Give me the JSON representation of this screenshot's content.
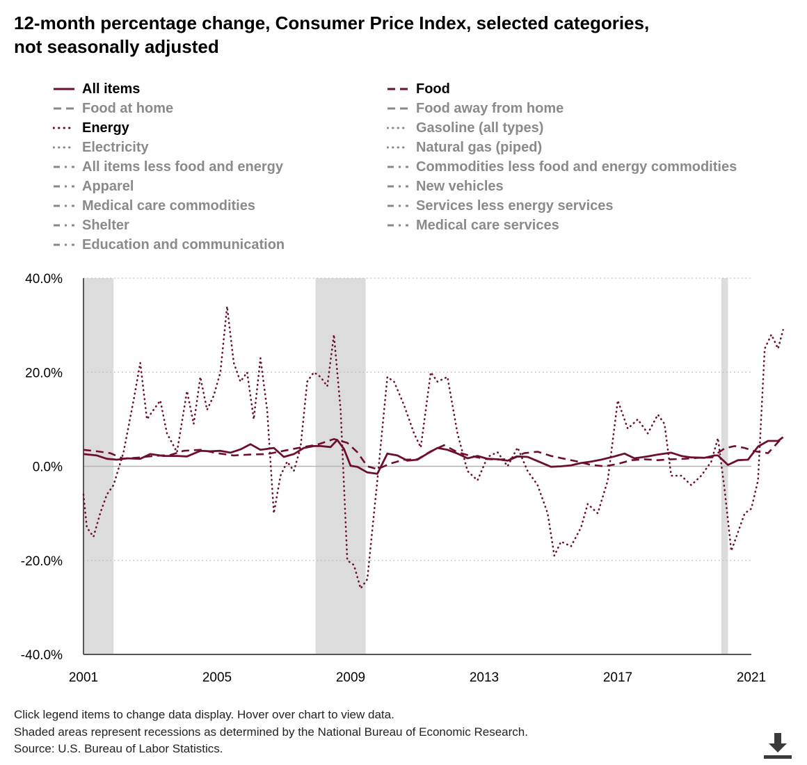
{
  "title_line1": "12-month percentage change, Consumer Price Index, selected categories,",
  "title_line2": "not seasonally adjusted",
  "legend": [
    {
      "label": "All items",
      "style": "solid",
      "active": true
    },
    {
      "label": "Food",
      "style": "dash",
      "active": true
    },
    {
      "label": "Food at home",
      "style": "dash",
      "active": false
    },
    {
      "label": "Food away from home",
      "style": "dash",
      "active": false
    },
    {
      "label": "Energy",
      "style": "dot",
      "active": true
    },
    {
      "label": "Gasoline (all types)",
      "style": "dot",
      "active": false
    },
    {
      "label": "Electricity",
      "style": "dot",
      "active": false
    },
    {
      "label": "Natural gas (piped)",
      "style": "dot",
      "active": false
    },
    {
      "label": "All items less food and energy",
      "style": "dashdot",
      "active": false
    },
    {
      "label": "Commodities less food and energy commodities",
      "style": "dashdot",
      "active": false
    },
    {
      "label": "Apparel",
      "style": "dashdot",
      "active": false
    },
    {
      "label": "New vehicles",
      "style": "dashdot",
      "active": false
    },
    {
      "label": "Medical care commodities",
      "style": "dashdot",
      "active": false
    },
    {
      "label": "Services less energy services",
      "style": "dashdot",
      "active": false
    },
    {
      "label": "Shelter",
      "style": "dashdot",
      "active": false
    },
    {
      "label": "Medical care services",
      "style": "dashdot",
      "active": false
    },
    {
      "label": "Education and communication",
      "style": "dashdot",
      "active": false
    }
  ],
  "notes": {
    "line1": "Click legend items to change data display. Hover over chart to view data.",
    "line2": "Shaded areas represent recessions as determined by the National Bureau of Economic Research.",
    "line3": "Source: U.S. Bureau of Labor Statistics."
  },
  "download_icon": "download-icon",
  "colors": {
    "series": "#6d0f2b",
    "recession": "#dcdcdc",
    "grid": "#bdbdbd",
    "zero_line": "#b4b4b4",
    "inactive_legend": "#8a8a8a"
  },
  "chart_data": {
    "type": "line",
    "title": "12-month percentage change, Consumer Price Index, selected categories, not seasonally adjusted",
    "xlabel": "",
    "ylabel": "",
    "xlim": [
      2001.0,
      2021.0
    ],
    "ylim": [
      -40,
      40
    ],
    "y_ticks": [
      "40.0%",
      "20.0%",
      "0.0%",
      "-20.0%",
      "-40.0%"
    ],
    "y_tick_values": [
      40,
      20,
      0,
      -20,
      -40
    ],
    "x_ticks": [
      "2001",
      "2005",
      "2009",
      "2013",
      "2017",
      "2021"
    ],
    "x_tick_values": [
      2001,
      2005,
      2009,
      2013,
      2017,
      2021
    ],
    "grid": "horizontal dotted",
    "recessions": [
      [
        2001.0,
        2001.9
      ],
      [
        2007.95,
        2009.45
      ],
      [
        2020.1,
        2020.3
      ]
    ],
    "series": [
      {
        "name": "All items",
        "style": "solid",
        "x": [
          2001.0,
          2001.4,
          2001.7,
          2002.0,
          2002.3,
          2002.7,
          2003.0,
          2003.4,
          2003.8,
          2004.1,
          2004.5,
          2004.8,
          2005.1,
          2005.4,
          2005.7,
          2006.0,
          2006.3,
          2006.7,
          2007.0,
          2007.3,
          2007.6,
          2007.9,
          2008.1,
          2008.4,
          2008.6,
          2008.8,
          2009.0,
          2009.2,
          2009.5,
          2009.8,
          2010.1,
          2010.4,
          2010.7,
          2011.0,
          2011.3,
          2011.6,
          2011.9,
          2012.2,
          2012.5,
          2012.8,
          2013.1,
          2013.4,
          2013.7,
          2014.0,
          2014.3,
          2014.7,
          2015.0,
          2015.3,
          2015.6,
          2015.9,
          2016.2,
          2016.5,
          2016.9,
          2017.2,
          2017.5,
          2017.9,
          2018.2,
          2018.6,
          2018.9,
          2019.2,
          2019.6,
          2019.9,
          2020.0,
          2020.3,
          2020.6,
          2020.9,
          2021.2,
          2021.5,
          2021.8,
          2021.95
        ],
        "y": [
          2.6,
          2.3,
          1.6,
          1.4,
          1.7,
          1.6,
          2.6,
          2.2,
          2.2,
          2.1,
          3.3,
          3.2,
          3.3,
          2.9,
          3.6,
          4.7,
          3.5,
          3.9,
          2.0,
          2.6,
          3.9,
          4.3,
          4.3,
          4.1,
          5.6,
          3.7,
          0.1,
          -0.1,
          -1.3,
          -1.6,
          2.7,
          2.3,
          1.2,
          1.4,
          2.7,
          3.9,
          3.5,
          2.7,
          1.7,
          2.2,
          1.6,
          1.5,
          1.2,
          2.1,
          2.0,
          0.8,
          -0.1,
          0.0,
          0.2,
          0.7,
          1.0,
          1.4,
          2.1,
          2.7,
          1.7,
          2.1,
          2.5,
          2.9,
          2.2,
          1.9,
          1.8,
          2.3,
          2.3,
          0.3,
          1.3,
          1.4,
          4.2,
          5.4,
          5.4,
          6.2
        ]
      },
      {
        "name": "Food",
        "style": "dash",
        "x": [
          2001.0,
          2001.4,
          2001.8,
          2002.2,
          2002.7,
          2003.1,
          2003.6,
          2004.0,
          2004.5,
          2005.0,
          2005.5,
          2006.0,
          2006.5,
          2007.0,
          2007.5,
          2008.0,
          2008.5,
          2008.9,
          2009.2,
          2009.5,
          2009.8,
          2010.2,
          2010.6,
          2011.0,
          2011.4,
          2011.8,
          2012.2,
          2012.6,
          2013.0,
          2013.4,
          2013.8,
          2014.2,
          2014.6,
          2015.0,
          2015.4,
          2015.8,
          2016.2,
          2016.6,
          2017.0,
          2017.4,
          2017.8,
          2018.2,
          2018.6,
          2019.0,
          2019.4,
          2019.8,
          2020.2,
          2020.5,
          2020.8,
          2021.1,
          2021.5,
          2021.95
        ],
        "y": [
          3.5,
          3.2,
          2.8,
          1.6,
          1.9,
          2.2,
          2.4,
          3.3,
          3.5,
          2.8,
          2.3,
          2.5,
          2.6,
          3.3,
          4.0,
          4.6,
          5.8,
          5.0,
          3.0,
          0.0,
          -0.6,
          0.6,
          1.4,
          1.5,
          3.2,
          4.5,
          3.0,
          2.2,
          1.6,
          1.4,
          1.6,
          2.8,
          3.1,
          2.2,
          1.6,
          1.0,
          0.3,
          0.0,
          0.5,
          1.3,
          1.5,
          1.3,
          1.5,
          1.6,
          1.8,
          1.9,
          3.8,
          4.3,
          3.9,
          3.2,
          2.8,
          6.3
        ]
      },
      {
        "name": "Energy",
        "style": "dot",
        "x": [
          2001.0,
          2001.1,
          2001.3,
          2001.5,
          2001.7,
          2001.9,
          2002.2,
          2002.5,
          2002.7,
          2002.9,
          2003.1,
          2003.3,
          2003.5,
          2003.8,
          2004.1,
          2004.3,
          2004.5,
          2004.7,
          2004.9,
          2005.1,
          2005.3,
          2005.5,
          2005.7,
          2005.9,
          2006.1,
          2006.3,
          2006.5,
          2006.7,
          2006.9,
          2007.1,
          2007.3,
          2007.5,
          2007.7,
          2007.9,
          2008.1,
          2008.3,
          2008.5,
          2008.7,
          2008.9,
          2009.1,
          2009.3,
          2009.5,
          2009.8,
          2010.1,
          2010.3,
          2010.6,
          2010.9,
          2011.1,
          2011.4,
          2011.6,
          2011.9,
          2012.2,
          2012.5,
          2012.8,
          2013.1,
          2013.4,
          2013.7,
          2014.0,
          2014.3,
          2014.6,
          2014.9,
          2015.1,
          2015.3,
          2015.6,
          2015.9,
          2016.1,
          2016.4,
          2016.7,
          2017.0,
          2017.3,
          2017.6,
          2017.9,
          2018.2,
          2018.4,
          2018.6,
          2018.9,
          2019.2,
          2019.5,
          2019.8,
          2020.0,
          2020.2,
          2020.4,
          2020.6,
          2020.8,
          2021.0,
          2021.2,
          2021.4,
          2021.6,
          2021.8,
          2021.95
        ],
        "y": [
          -6.0,
          -13.0,
          -15.0,
          -10.0,
          -6.0,
          -4.0,
          3.0,
          14.0,
          22.0,
          10.0,
          12.0,
          14.0,
          7.0,
          3.0,
          16.0,
          9.0,
          19.0,
          12.0,
          15.0,
          20.0,
          34.0,
          22.0,
          18.0,
          20.0,
          10.0,
          23.0,
          12.0,
          -10.0,
          -2.0,
          1.0,
          -1.0,
          4.0,
          18.0,
          20.0,
          19.0,
          17.0,
          28.0,
          12.0,
          -20.0,
          -21.0,
          -26.0,
          -24.0,
          -3.0,
          19.0,
          18.0,
          13.0,
          7.0,
          4.0,
          20.0,
          18.0,
          19.0,
          7.0,
          -1.0,
          -3.0,
          2.0,
          3.0,
          0.0,
          4.0,
          -1.0,
          -4.0,
          -10.0,
          -19.0,
          -16.0,
          -17.0,
          -13.0,
          -8.0,
          -10.0,
          -3.0,
          14.0,
          8.0,
          10.0,
          7.0,
          11.0,
          9.0,
          -2.0,
          -2.0,
          -4.0,
          -2.0,
          1.0,
          6.0,
          -5.0,
          -18.0,
          -14.0,
          -10.0,
          -9.0,
          -3.0,
          25.0,
          28.0,
          25.0,
          29.0
        ]
      }
    ]
  }
}
